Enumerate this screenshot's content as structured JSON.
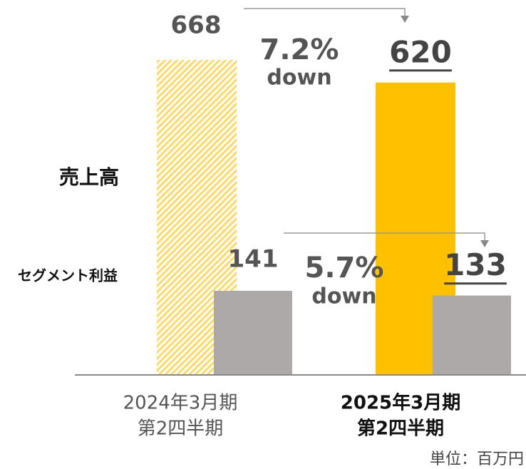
{
  "chart_data": {
    "type": "bar",
    "categories": [
      [
        "2024年3月期",
        "第2四半期"
      ],
      [
        "2025年3月期",
        "第2四半期"
      ]
    ],
    "series": [
      {
        "name": "売上高",
        "color": "#FFC000",
        "values": [
          668,
          620
        ]
      },
      {
        "name": "セグメント利益",
        "color": "#ADA9A8",
        "values": [
          141,
          133
        ]
      }
    ],
    "annotations": [
      [
        "7.2%",
        "down"
      ],
      [
        "5.7%",
        "down"
      ]
    ],
    "unit_note": "単位：百万円"
  }
}
